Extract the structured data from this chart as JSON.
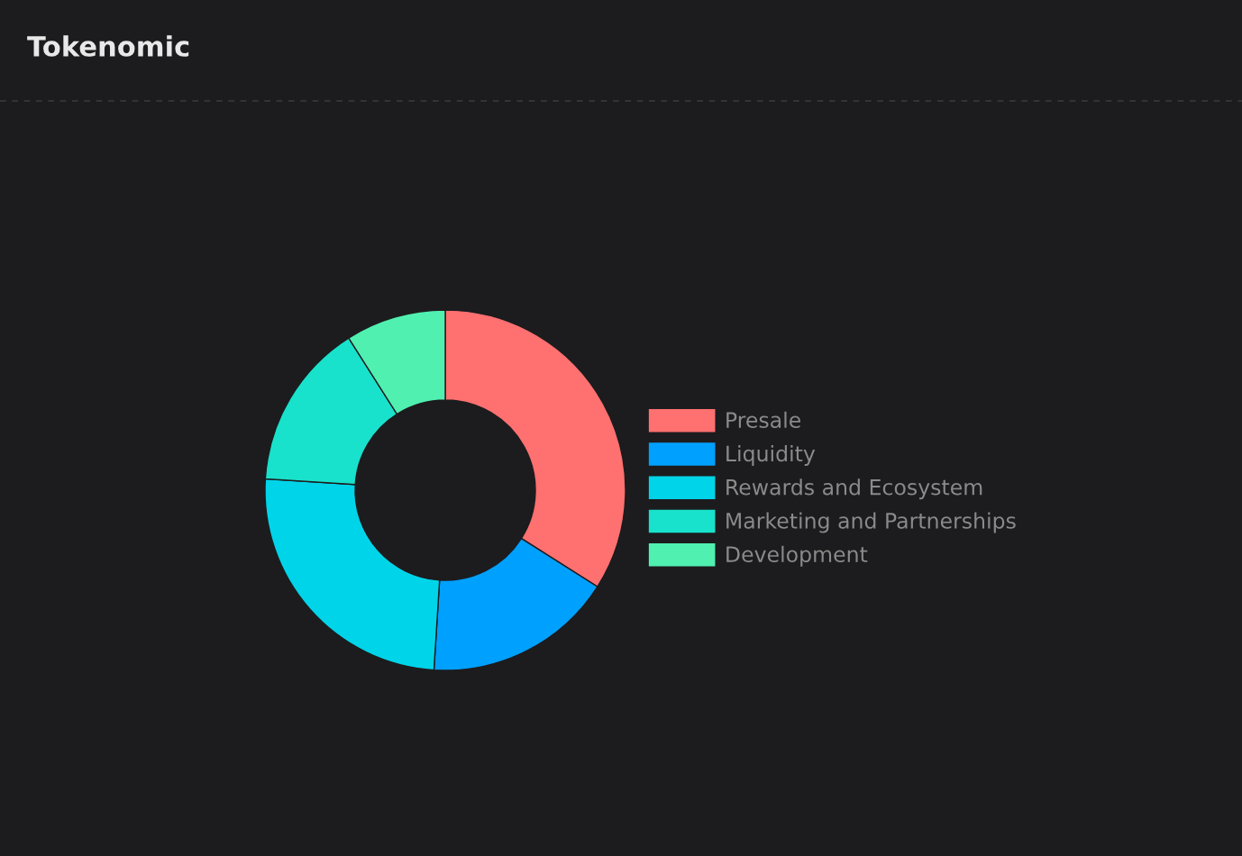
{
  "chart_data": {
    "type": "donut",
    "title": "Tokenomic",
    "categories": [
      "Presale",
      "Liquidity",
      "Rewards and Ecosystem",
      "Marketing and Partnerships",
      "Development"
    ],
    "values": [
      34,
      17,
      25,
      15,
      9
    ],
    "colors": [
      "#ff7070",
      "#00a0ff",
      "#00d4e8",
      "#18e2cc",
      "#50f0b0"
    ],
    "legend": "right"
  }
}
